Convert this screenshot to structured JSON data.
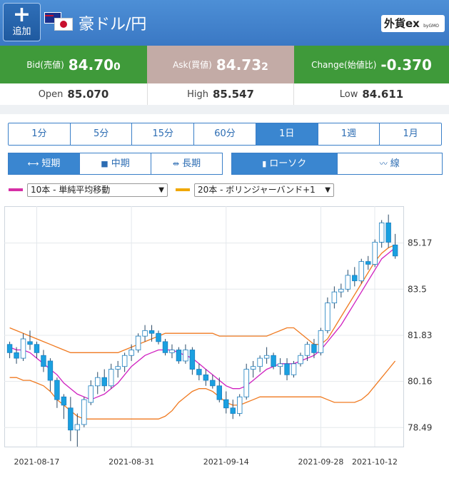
{
  "header": {
    "add_label": "追加",
    "pair_title": "豪ドル/円",
    "brand_name": "外貨ex",
    "brand_sub": "byGMO"
  },
  "quote": {
    "bid": {
      "label": "Bid(売値)",
      "value_main": "84.70",
      "value_tail": "0"
    },
    "ask": {
      "label": "Ask(買値)",
      "value_main": "84.73",
      "value_tail": "2"
    },
    "change": {
      "label": "Change(始値比)",
      "value": "-0.370"
    },
    "open": {
      "label": "Open",
      "value": "85.070"
    },
    "high": {
      "label": "High",
      "value": "85.547"
    },
    "low": {
      "label": "Low",
      "value": "84.611"
    }
  },
  "periods": [
    "1分",
    "5分",
    "15分",
    "60分",
    "1日",
    "1週",
    "1月"
  ],
  "periods_active": 4,
  "terms": [
    "短期",
    "中期",
    "長期"
  ],
  "terms_active": 0,
  "types": [
    "ローソク",
    "線"
  ],
  "types_active": 0,
  "indicators": {
    "ma": {
      "label": "10本 - 単純平均移動",
      "color": "#d62fa6"
    },
    "bb": {
      "label": "20本 - ボリンジャーバンド+1",
      "color": "#f0a800"
    }
  },
  "colors": {
    "candle": "#1aa0e0",
    "ma_line": "#d020c0",
    "bb_line": "#f07a20"
  },
  "chart_data": {
    "type": "candlestick",
    "y_ticks": [
      "85.17",
      "83.5",
      "81.83",
      "80.16",
      "78.49"
    ],
    "y_tick_values": [
      85.17,
      83.5,
      81.83,
      80.16,
      78.49
    ],
    "x_ticks": [
      "2021-08-17",
      "2021-08-31",
      "2021-09-14",
      "2021-09-28",
      "2021-10-12"
    ],
    "ylim": [
      77.8,
      86.4
    ],
    "grid": true,
    "ohlc": [
      [
        81.5,
        81.6,
        81.0,
        81.2
      ],
      [
        81.2,
        81.4,
        80.8,
        81.0
      ],
      [
        81.0,
        81.9,
        80.9,
        81.7
      ],
      [
        81.6,
        82.0,
        81.3,
        81.5
      ],
      [
        81.5,
        81.6,
        81.0,
        81.2
      ],
      [
        81.1,
        81.3,
        80.5,
        80.7
      ],
      [
        80.9,
        81.0,
        79.8,
        80.2
      ],
      [
        80.2,
        80.3,
        79.2,
        79.5
      ],
      [
        79.6,
        79.7,
        78.8,
        79.3
      ],
      [
        79.2,
        79.6,
        78.0,
        78.4
      ],
      [
        78.4,
        79.0,
        77.8,
        78.6
      ],
      [
        78.6,
        79.6,
        78.5,
        79.5
      ],
      [
        79.4,
        80.2,
        79.3,
        80.0
      ],
      [
        80.0,
        80.5,
        79.7,
        80.3
      ],
      [
        80.3,
        80.6,
        79.8,
        80.0
      ],
      [
        80.0,
        80.8,
        79.9,
        80.6
      ],
      [
        80.6,
        80.9,
        80.3,
        80.7
      ],
      [
        80.7,
        81.2,
        80.5,
        81.1
      ],
      [
        81.1,
        81.5,
        80.9,
        81.3
      ],
      [
        81.3,
        81.9,
        81.2,
        81.8
      ],
      [
        81.8,
        82.2,
        81.6,
        82.0
      ],
      [
        82.0,
        82.2,
        81.6,
        81.9
      ],
      [
        81.9,
        82.0,
        81.5,
        81.6
      ],
      [
        81.6,
        81.7,
        81.1,
        81.2
      ],
      [
        81.2,
        81.5,
        81.0,
        81.3
      ],
      [
        81.3,
        81.4,
        80.8,
        80.9
      ],
      [
        80.9,
        81.5,
        80.8,
        81.3
      ],
      [
        81.3,
        81.4,
        80.4,
        80.6
      ],
      [
        80.6,
        80.8,
        80.2,
        80.4
      ],
      [
        80.4,
        80.6,
        80.0,
        80.2
      ],
      [
        80.2,
        80.4,
        79.9,
        80.0
      ],
      [
        80.0,
        80.3,
        79.4,
        79.5
      ],
      [
        79.5,
        79.8,
        79.0,
        79.2
      ],
      [
        79.2,
        79.5,
        78.8,
        79.0
      ],
      [
        79.0,
        79.7,
        78.9,
        79.6
      ],
      [
        79.6,
        80.8,
        79.5,
        80.6
      ],
      [
        80.6,
        80.9,
        80.3,
        80.7
      ],
      [
        80.7,
        81.1,
        80.5,
        81.0
      ],
      [
        81.0,
        81.4,
        80.8,
        81.1
      ],
      [
        81.1,
        81.2,
        80.6,
        80.7
      ],
      [
        80.7,
        81.0,
        80.4,
        80.8
      ],
      [
        80.8,
        81.0,
        80.2,
        80.4
      ],
      [
        80.4,
        80.9,
        80.3,
        80.8
      ],
      [
        80.8,
        81.2,
        80.7,
        81.1
      ],
      [
        81.1,
        81.6,
        80.9,
        81.5
      ],
      [
        81.5,
        81.7,
        81.0,
        81.2
      ],
      [
        81.2,
        82.1,
        81.1,
        82.0
      ],
      [
        82.0,
        83.2,
        81.9,
        83.0
      ],
      [
        83.0,
        83.6,
        82.8,
        83.4
      ],
      [
        83.4,
        83.7,
        83.2,
        83.5
      ],
      [
        83.5,
        84.2,
        83.4,
        84.0
      ],
      [
        84.0,
        84.3,
        83.6,
        83.8
      ],
      [
        83.8,
        84.6,
        83.7,
        84.5
      ],
      [
        84.5,
        84.7,
        84.2,
        84.4
      ],
      [
        84.4,
        85.3,
        84.3,
        85.2
      ],
      [
        85.2,
        86.0,
        85.0,
        85.9
      ],
      [
        85.9,
        86.2,
        85.0,
        85.2
      ],
      [
        85.1,
        85.5,
        84.6,
        84.7
      ]
    ],
    "ma10": [
      81.4,
      81.3,
      81.3,
      81.2,
      81.0,
      80.8,
      80.6,
      80.4,
      80.1,
      79.9,
      79.7,
      79.6,
      79.5,
      79.6,
      79.7,
      79.9,
      80.1,
      80.4,
      80.7,
      80.9,
      81.1,
      81.2,
      81.3,
      81.3,
      81.3,
      81.2,
      81.1,
      81.0,
      80.8,
      80.6,
      80.4,
      80.2,
      80.0,
      79.9,
      79.9,
      80.0,
      80.2,
      80.4,
      80.6,
      80.7,
      80.8,
      80.8,
      80.8,
      80.9,
      81.0,
      81.1,
      81.3,
      81.6,
      81.9,
      82.2,
      82.6,
      83.0,
      83.4,
      83.8,
      84.2,
      84.6,
      84.8,
      85.0
    ],
    "bb_upper": [
      82.1,
      82.0,
      81.9,
      81.8,
      81.7,
      81.6,
      81.5,
      81.4,
      81.3,
      81.2,
      81.2,
      81.2,
      81.2,
      81.2,
      81.2,
      81.2,
      81.2,
      81.3,
      81.4,
      81.5,
      81.6,
      81.7,
      81.8,
      81.9,
      81.9,
      81.9,
      81.9,
      81.9,
      81.9,
      81.9,
      81.9,
      81.8,
      81.8,
      81.8,
      81.8,
      81.8,
      81.8,
      81.8,
      81.8,
      81.9,
      82.0,
      82.1,
      82.1,
      81.9,
      81.7,
      81.5,
      81.5,
      81.7,
      82.1,
      82.5,
      82.9,
      83.3,
      83.7,
      84.1,
      84.5,
      84.8,
      85.0,
      85.1
    ],
    "bb_lower": [
      80.3,
      80.3,
      80.2,
      80.2,
      80.1,
      80.0,
      79.8,
      79.5,
      79.3,
      79.1,
      78.9,
      78.8,
      78.8,
      78.8,
      78.8,
      78.8,
      78.8,
      78.8,
      78.8,
      78.8,
      78.8,
      78.8,
      78.8,
      78.9,
      79.1,
      79.4,
      79.6,
      79.8,
      79.9,
      79.9,
      79.8,
      79.6,
      79.4,
      79.3,
      79.3,
      79.4,
      79.5,
      79.6,
      79.6,
      79.6,
      79.6,
      79.6,
      79.6,
      79.6,
      79.6,
      79.6,
      79.6,
      79.5,
      79.4,
      79.4,
      79.4,
      79.4,
      79.5,
      79.7,
      80.0,
      80.3,
      80.6,
      80.9
    ]
  }
}
